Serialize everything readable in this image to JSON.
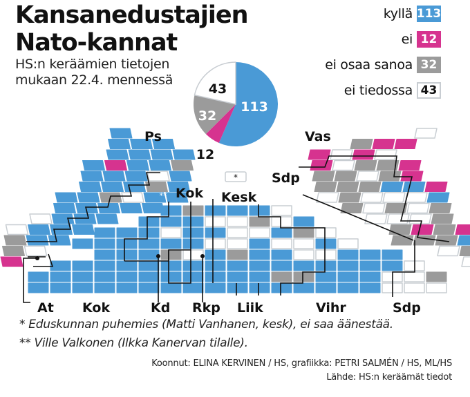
{
  "title_line1": "Kansanedustajien",
  "title_line2": "Nato-kannat",
  "subtitle_line1": "HS:n keräämien tietojen",
  "subtitle_line2": "mukaan 22.4. mennessä",
  "colors": {
    "kylla": "#4a9ad6",
    "ei": "#d6338f",
    "eos": "#9b9b9b",
    "eit": "#ffffff",
    "border": "#c8cdd2"
  },
  "legend": [
    {
      "label": "kyllä",
      "value": "113",
      "key": "kylla"
    },
    {
      "label": "ei",
      "value": "12",
      "key": "ei"
    },
    {
      "label": "ei osaa sanoa",
      "value": "32",
      "key": "eos"
    },
    {
      "label": "ei tiedossa",
      "value": "43",
      "key": "eit"
    }
  ],
  "chart_data": {
    "type": "pie",
    "title": "Kansanedustajien Nato-kannat",
    "categories": [
      "kyllä",
      "ei",
      "ei osaa sanoa",
      "ei tiedossa"
    ],
    "values": [
      113,
      12,
      32,
      43
    ],
    "labels": [
      "113",
      "12",
      "32",
      "43"
    ]
  },
  "seat_chart": {
    "party_labels": {
      "ps": "Ps",
      "kok_top": "Kok",
      "kesk": "Kesk",
      "vas": "Vas",
      "sdp_top": "Sdp",
      "at": "At",
      "kok": "Kok",
      "kd": "Kd",
      "rkp": "Rkp",
      "liik": "Liik",
      "vihr": "Vihr",
      "sdp": "Sdp"
    },
    "speaker_mark": "*",
    "replacement_mark": "**",
    "center_rows": [
      {
        "start": 6,
        "seats": "BGBBBW"
      },
      {
        "start": 5,
        "seats": "BBBWWGWB"
      },
      {
        "start": 3,
        "seats": "BBBWBBWWBGW"
      },
      {
        "start": 2,
        "seats": "BBBBBBWWBWWBW"
      },
      {
        "start": 3,
        "seats": "BBBGWBGBBWWBBB"
      },
      {
        "start": 1,
        "seats": "BBBBBBBBBBBBBBBBW"
      },
      {
        "start": 0,
        "seats": "BBBBBBBBBBBGGBBBWWG"
      },
      {
        "start": 0,
        "seats": "BBBBBBBBBBBBBBBBWWW"
      }
    ],
    "left_rows": [
      {
        "start": 4,
        "seats": "B"
      },
      {
        "start": 4,
        "seats": "BBB"
      },
      {
        "start": 4,
        "seats": "BBBB"
      },
      {
        "start": 3,
        "seats": "BEBBG"
      },
      {
        "start": 3,
        "seats": "BBBWB"
      },
      {
        "start": 3,
        "seats": "BBBGB"
      },
      {
        "start": 2,
        "seats": "BBGWBB"
      },
      {
        "start": 2,
        "seats": "BBBBB"
      },
      {
        "start": 1,
        "seats": "WBBB"
      },
      {
        "start": 0,
        "seats": "WBBB"
      },
      {
        "start": 0,
        "seats": "GBB"
      },
      {
        "start": 0,
        "seats": "GW"
      },
      {
        "start": 0,
        "seats": "E"
      }
    ],
    "right_rows": [
      {
        "start": 5,
        "seats": "W"
      },
      {
        "start": 2,
        "seats": "GEE"
      },
      {
        "start": 0,
        "seats": "EWEW"
      },
      {
        "start": 0,
        "seats": "EWGGE"
      },
      {
        "start": 0,
        "seats": "GGWGE"
      },
      {
        "start": 0,
        "seats": "GGGBBE"
      },
      {
        "start": 0,
        "seats": "WGWWWB"
      },
      {
        "start": 1,
        "seats": "GWGWG"
      },
      {
        "start": 2,
        "seats": "WWWG"
      },
      {
        "start": 3,
        "seats": "GEGE"
      },
      {
        "start": 3,
        "seats": "GGGB"
      },
      {
        "start": 5,
        "seats": "WG"
      },
      {
        "start": 6,
        "seats": "W"
      }
    ]
  },
  "footnote1": "* Eduskunnan puhemies (Matti Vanhanen, kesk), ei saa äänestää.",
  "footnote2": "** Ville Valkonen (Ilkka Kanervan tilalle).",
  "credit": "Koonnut: ELINA KERVINEN / HS, grafiikka: PETRI SALMÉN / HS, ML/HS",
  "source": "Lähde: HS:n keräämät tiedot"
}
